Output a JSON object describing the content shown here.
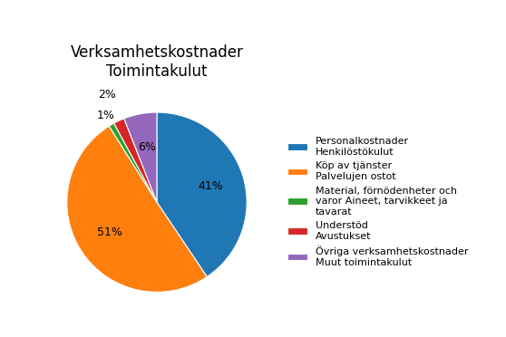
{
  "chart_data": {
    "type": "pie",
    "title": "Verksamhetskostnader\nToimintakulut",
    "categories": [
      "Personalkostnader\nHenkilöstökulut",
      "Köp av tjänster\nPalvelujen ostot",
      "Material, förnödenheter och\nvaror Aineet, tarvikkeet ja\ntavarat",
      "Understöd\nAvustukset",
      "Övriga verksamhetskostnader\nMuut toimintakulut"
    ],
    "values": [
      41,
      51,
      1,
      2,
      6
    ],
    "value_labels": [
      "41%",
      "51%",
      "1%",
      "2%",
      "6%"
    ],
    "data_labels": true,
    "legend": "right"
  }
}
